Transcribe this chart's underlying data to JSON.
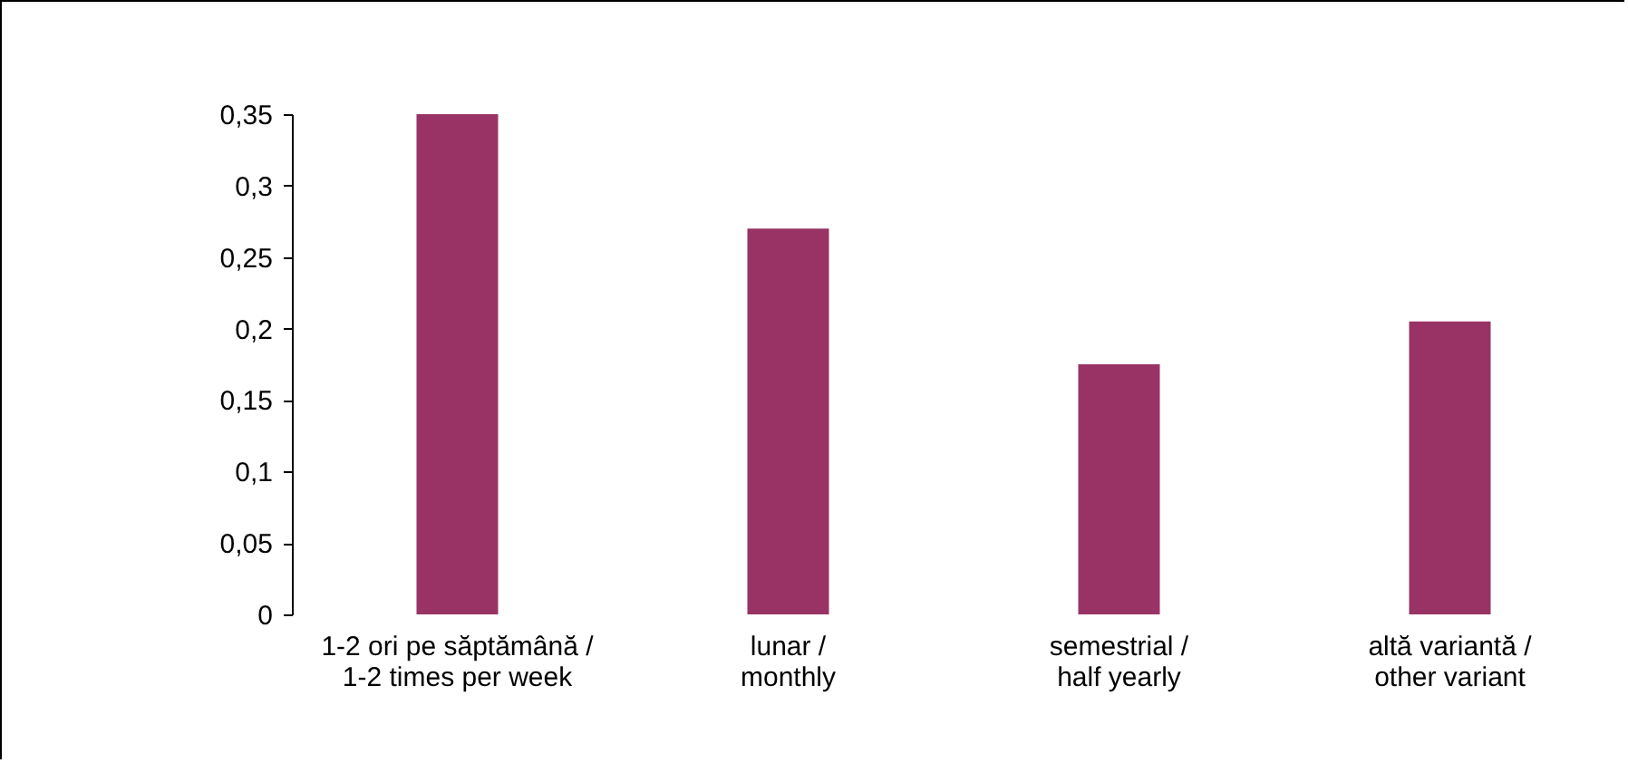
{
  "chart_data": {
    "type": "bar",
    "categories": [
      "1-2 ori pe săptămână / 1-2 times per week",
      "lunar / monthly",
      "semestrial / half yearly",
      "altă variantă / other variant"
    ],
    "values": [
      0.35,
      0.27,
      0.175,
      0.205
    ],
    "color": "#993366",
    "ylim": [
      0,
      0.35
    ],
    "yticks": [
      {
        "value": 0,
        "label": "0"
      },
      {
        "value": 0.05,
        "label": "0,05"
      },
      {
        "value": 0.1,
        "label": "0,1"
      },
      {
        "value": 0.15,
        "label": "0,15"
      },
      {
        "value": 0.2,
        "label": "0,2"
      },
      {
        "value": 0.25,
        "label": "0,25"
      },
      {
        "value": 0.3,
        "label": "0,3"
      },
      {
        "value": 0.35,
        "label": "0,35"
      }
    ]
  }
}
